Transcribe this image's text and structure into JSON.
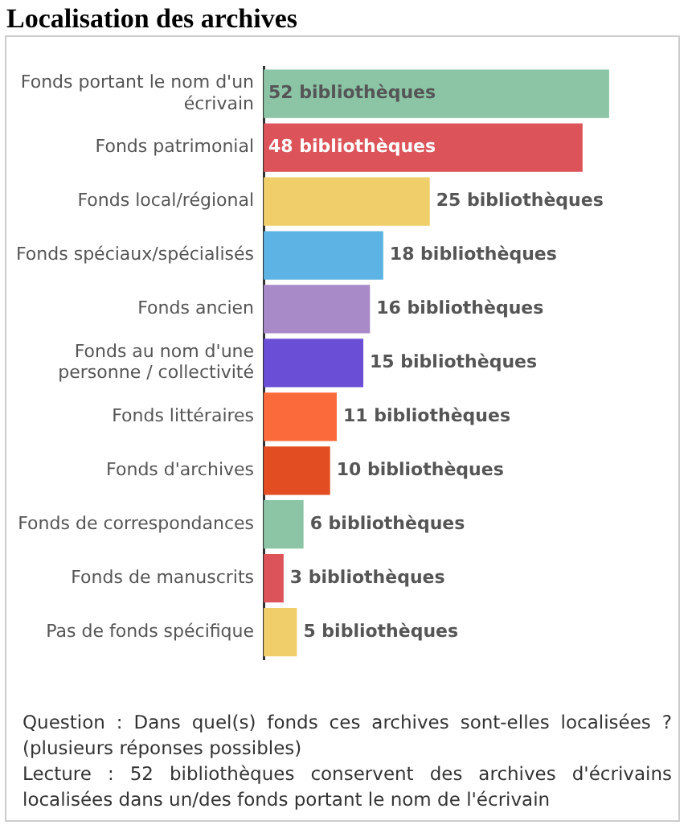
{
  "chart_data": {
    "type": "bar",
    "orientation": "horizontal",
    "title": "Localisation des archives",
    "categories": [
      "Fonds portant le nom d'un écrivain",
      "Fonds patrimonial",
      "Fonds local/régional",
      "Fonds spéciaux/spécialisés",
      "Fonds ancien",
      "Fonds au nom d'une personne / collectivité",
      "Fonds littéraires",
      "Fonds d'archives",
      "Fonds de correspondances",
      "Fonds de manuscrits",
      "Pas de fonds spécifique"
    ],
    "values": [
      52,
      48,
      25,
      18,
      16,
      15,
      11,
      10,
      6,
      3,
      5
    ],
    "colors": [
      "#8cc4a6",
      "#dc535a",
      "#f0cf6a",
      "#5db3e3",
      "#a88ac8",
      "#6a4fd6",
      "#fb6a3a",
      "#e24e22",
      "#8cc4a6",
      "#dc535a",
      "#f0cf6a"
    ],
    "value_labels": [
      "52 bibliothèques",
      "48 bibliothèques",
      "25 bibliothèques",
      "18 bibliothèques",
      "16 bibliothèques",
      "15 bibliothèques",
      "11 bibliothèques",
      "10 bibliothèques",
      "6 bibliothèques",
      "3 bibliothèques",
      "5 bibliothèques"
    ],
    "tick_labels": "y",
    "grid": false,
    "legend": false,
    "annotations": [
      "Question : Dans quel(s) fonds ces archives sont-elles localisées ? (plusieurs réponses possibles)",
      "Lecture : 52 bibliothèques conservent des archives d'écrivains localisées dans un/des fonds portant le nom de l'écrivain"
    ]
  }
}
